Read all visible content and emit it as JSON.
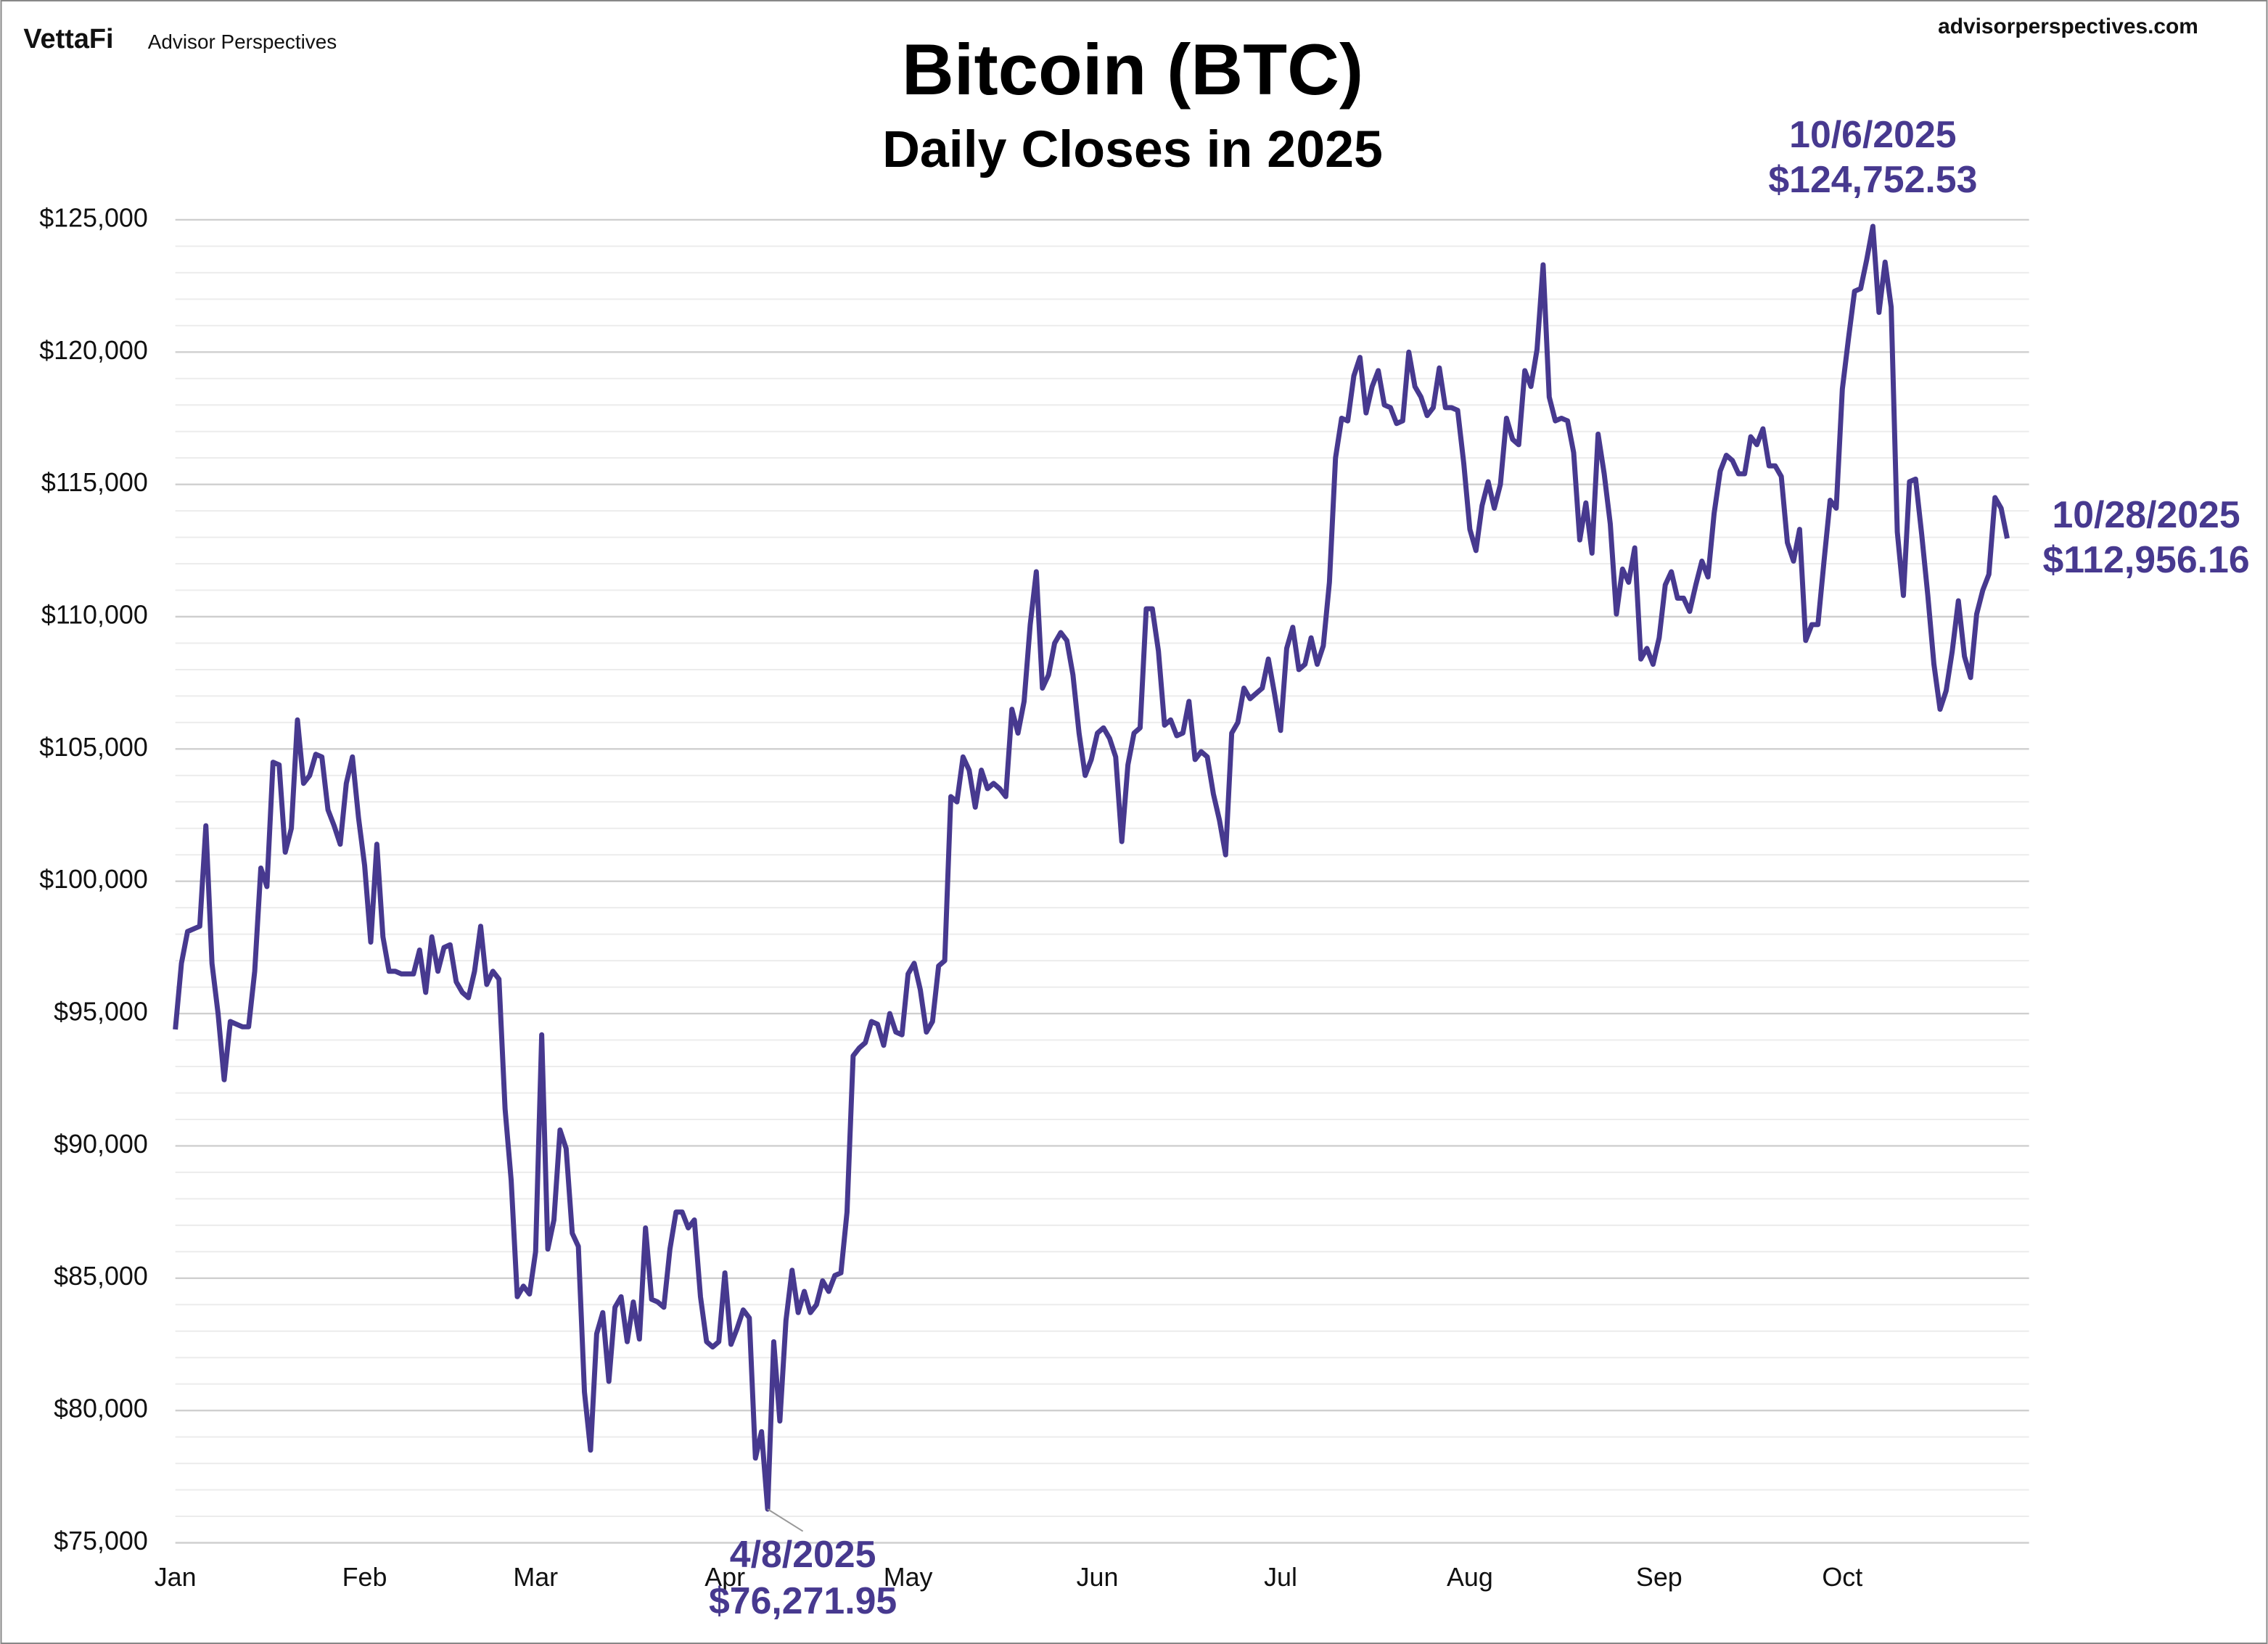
{
  "chart_data": {
    "type": "line",
    "logo": "VettaFi",
    "publisher": "Advisor Perspectives",
    "website": "advisorperspectives.com",
    "title": "Bitcoin (BTC)",
    "subtitle": "Daily Closes in 2025",
    "color": "#47398f",
    "grid": true,
    "ylim": [
      75000,
      125000
    ],
    "yticks": [
      {
        "value": 75000,
        "label": "$75,000"
      },
      {
        "value": 80000,
        "label": "$80,000"
      },
      {
        "value": 85000,
        "label": "$85,000"
      },
      {
        "value": 90000,
        "label": "$90,000"
      },
      {
        "value": 95000,
        "label": "$95,000"
      },
      {
        "value": 100000,
        "label": "$100,000"
      },
      {
        "value": 105000,
        "label": "$105,000"
      },
      {
        "value": 110000,
        "label": "$110,000"
      },
      {
        "value": 115000,
        "label": "$115,000"
      },
      {
        "value": 120000,
        "label": "$120,000"
      },
      {
        "value": 125000,
        "label": "$125,000"
      }
    ],
    "minor_yticks": [
      76000,
      77000,
      78000,
      79000,
      81000,
      82000,
      83000,
      84000,
      86000,
      87000,
      88000,
      89000,
      91000,
      92000,
      93000,
      94000,
      96000,
      97000,
      98000,
      99000,
      101000,
      102000,
      103000,
      104000,
      106000,
      107000,
      108000,
      109000,
      111000,
      112000,
      113000,
      114000,
      116000,
      117000,
      118000,
      119000,
      121000,
      122000,
      123000,
      124000
    ],
    "categories": [
      "Jan",
      null,
      null,
      null,
      null,
      null,
      null,
      null,
      null,
      null,
      null,
      null,
      null,
      null,
      null,
      null,
      null,
      null,
      null,
      null,
      null,
      null,
      null,
      null,
      null,
      null,
      null,
      null,
      null,
      null,
      null,
      "Feb",
      null,
      null,
      null,
      null,
      null,
      null,
      null,
      null,
      null,
      null,
      null,
      null,
      null,
      null,
      null,
      null,
      null,
      null,
      null,
      null,
      null,
      null,
      null,
      null,
      null,
      null,
      null,
      "Mar",
      null,
      null,
      null,
      null,
      null,
      null,
      null,
      null,
      null,
      null,
      null,
      null,
      null,
      null,
      null,
      null,
      null,
      null,
      null,
      null,
      null,
      null,
      null,
      null,
      null,
      null,
      null,
      null,
      null,
      null,
      "Apr",
      null,
      null,
      null,
      null,
      null,
      null,
      null,
      null,
      null,
      null,
      null,
      null,
      null,
      null,
      null,
      null,
      null,
      null,
      null,
      null,
      null,
      null,
      null,
      null,
      null,
      null,
      null,
      null,
      null,
      "May",
      null,
      null,
      null,
      null,
      null,
      null,
      null,
      null,
      null,
      null,
      null,
      null,
      null,
      null,
      null,
      null,
      null,
      null,
      null,
      null,
      null,
      null,
      null,
      null,
      null,
      null,
      null,
      null,
      null,
      null,
      "Jun",
      null,
      null,
      null,
      null,
      null,
      null,
      null,
      null,
      null,
      null,
      null,
      null,
      null,
      null,
      null,
      null,
      null,
      null,
      null,
      null,
      null,
      null,
      null,
      null,
      null,
      null,
      null,
      null,
      null,
      "Jul",
      null,
      null,
      null,
      null,
      null,
      null,
      null,
      null,
      null,
      null,
      null,
      null,
      null,
      null,
      null,
      null,
      null,
      null,
      null,
      null,
      null,
      null,
      null,
      null,
      null,
      null,
      null,
      null,
      null,
      null,
      "Aug",
      null,
      null,
      null,
      null,
      null,
      null,
      null,
      null,
      null,
      null,
      null,
      null,
      null,
      null,
      null,
      null,
      null,
      null,
      null,
      null,
      null,
      null,
      null,
      null,
      null,
      null,
      null,
      null,
      null,
      null,
      "Sep",
      null,
      null,
      null,
      null,
      null,
      null,
      null,
      null,
      null,
      null,
      null,
      null,
      null,
      null,
      null,
      null,
      null,
      null,
      null,
      null,
      null,
      null,
      null,
      null,
      null,
      null,
      null,
      null,
      null,
      "Oct",
      null,
      null,
      null,
      null,
      null,
      null,
      null,
      null,
      null,
      null,
      null,
      null,
      null,
      null,
      null,
      null,
      null,
      null,
      null,
      null,
      null,
      null,
      null,
      null,
      null,
      null,
      null
    ],
    "values": [
      94400,
      96900,
      98100,
      98200,
      98300,
      102100,
      96900,
      95000,
      92500,
      94700,
      94600,
      94500,
      94500,
      96600,
      100500,
      99800,
      104500,
      104400,
      101100,
      102000,
      106100,
      103700,
      104000,
      104800,
      104700,
      102700,
      102100,
      101400,
      103700,
      104700,
      102400,
      100600,
      97700,
      101400,
      97900,
      96600,
      96600,
      96500,
      96500,
      96500,
      97400,
      95800,
      97900,
      96600,
      97500,
      97600,
      96200,
      95800,
      95600,
      96600,
      98300,
      96100,
      96600,
      96300,
      91400,
      88700,
      84300,
      84700,
      84400,
      86000,
      94200,
      86100,
      87200,
      90600,
      89900,
      86700,
      86200,
      80700,
      78500,
      82900,
      83700,
      81100,
      83900,
      84300,
      82600,
      84100,
      82700,
      86900,
      84200,
      84100,
      83900,
      86100,
      87500,
      87500,
      86900,
      87200,
      84300,
      82600,
      82400,
      82600,
      85200,
      82500,
      83100,
      83800,
      83500,
      78200,
      79200,
      76271.95,
      82600,
      79600,
      83400,
      85300,
      83700,
      84500,
      83700,
      84000,
      84900,
      84500,
      85100,
      85200,
      87500,
      93400,
      93700,
      93900,
      94700,
      94600,
      93800,
      95000,
      94300,
      94200,
      96500,
      96900,
      95900,
      94300,
      94700,
      96800,
      97000,
      103200,
      103000,
      104700,
      104200,
      102800,
      104200,
      103500,
      103700,
      103500,
      103200,
      106500,
      105600,
      106800,
      109700,
      111700,
      107300,
      107800,
      109000,
      109400,
      109100,
      107800,
      105600,
      104000,
      104600,
      105600,
      105800,
      105400,
      104700,
      101500,
      104400,
      105600,
      105800,
      110300,
      110300,
      108700,
      105900,
      106100,
      105500,
      105600,
      106800,
      104600,
      104900,
      104700,
      103300,
      102300,
      101000,
      105600,
      106000,
      107300,
      106900,
      107100,
      107300,
      108400,
      107100,
      105700,
      108800,
      109600,
      108000,
      108200,
      109200,
      108200,
      108900,
      111300,
      116000,
      117500,
      117400,
      119100,
      119800,
      117700,
      118700,
      119300,
      118000,
      117900,
      117300,
      117400,
      120000,
      118700,
      118300,
      117600,
      117900,
      119400,
      117900,
      117900,
      117800,
      115800,
      113300,
      112500,
      114200,
      115100,
      114100,
      115000,
      117500,
      116700,
      116500,
      119300,
      118700,
      120100,
      123300,
      118300,
      117400,
      117500,
      117400,
      116200,
      112900,
      114300,
      112400,
      116900,
      115400,
      113500,
      110100,
      111800,
      111300,
      112600,
      108400,
      108800,
      108200,
      109200,
      111200,
      111700,
      110700,
      110700,
      110200,
      111200,
      112100,
      111500,
      113900,
      115500,
      116100,
      115900,
      115400,
      115400,
      116800,
      116500,
      117100,
      115700,
      115700,
      115300,
      112800,
      112100,
      113300,
      109100,
      109700,
      109700,
      112100,
      114400,
      114100,
      118600,
      120500,
      122300,
      122400,
      123500,
      124752.53,
      121500,
      123400,
      121700,
      113200,
      110800,
      115100,
      115200,
      113100,
      110800,
      108200,
      106500,
      107200,
      108700,
      110600,
      108500,
      107700,
      110100,
      111000,
      111600,
      114500,
      114100,
      112956.16
    ],
    "annotations": [
      {
        "text": "4/8/2025",
        "label": "$76,271.95",
        "value": 76271.95
      },
      {
        "text": "10/6/2025",
        "label": "$124,752.53",
        "value": 124752.53
      },
      {
        "text": "10/28/2025",
        "label": "$112,956.16",
        "value": 112956.16
      }
    ]
  }
}
